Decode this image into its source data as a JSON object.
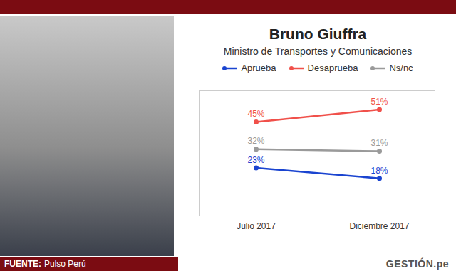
{
  "chart_data": {
    "type": "line",
    "title": "Bruno Giuffra",
    "subtitle": "Ministro de Transportes y Comunicaciones",
    "categories": [
      "Julio 2017",
      "Diciembre 2017"
    ],
    "series": [
      {
        "name": "Aprueba",
        "color": "#1a44d0",
        "values": [
          23,
          18
        ],
        "value_labels": [
          "23%",
          "18%"
        ]
      },
      {
        "name": "Desaprueba",
        "color": "#f0504a",
        "values": [
          45,
          51
        ],
        "value_labels": [
          "45%",
          "51%"
        ]
      },
      {
        "name": "Ns/nc",
        "color": "#9a9a9a",
        "values": [
          32,
          31
        ],
        "value_labels": [
          "32%",
          "31%"
        ]
      }
    ],
    "ylim": [
      0,
      60
    ],
    "tick_labels": "x",
    "legend": "top",
    "data_labels": true,
    "marker": "circle",
    "source": {
      "label": "FUENTE:",
      "text": "Pulso Perú"
    },
    "brand": "GESTIÓN.pe"
  }
}
